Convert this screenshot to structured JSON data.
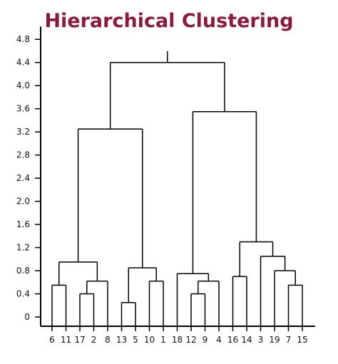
{
  "chart_data": {
    "type": "dendrogram",
    "title": "Hierarchical Clustering",
    "ylim": [
      0,
      4.8
    ],
    "y_ticks": [
      "0",
      "0.4",
      "0.8",
      "1.2",
      "1.6",
      "2.0",
      "2.4",
      "2.8",
      "3.2",
      "3.6",
      "4.0",
      "4.4",
      "4.8"
    ],
    "leaves": [
      "6",
      "11",
      "17",
      "2",
      "8",
      "13",
      "5",
      "10",
      "1",
      "18",
      "12",
      "9",
      "4",
      "16",
      "14",
      "3",
      "19",
      "7",
      "15"
    ],
    "merges": [
      {
        "left": "6",
        "right": "11",
        "height": 0.55
      },
      {
        "left": "17",
        "right": "2",
        "height": 0.4
      },
      {
        "left": "17+2",
        "right": "8",
        "height": 0.62
      },
      {
        "left": "6+11",
        "right": "17+2+8",
        "height": 0.95
      },
      {
        "left": "13",
        "right": "5",
        "height": 0.25
      },
      {
        "left": "10",
        "right": "1",
        "height": 0.62
      },
      {
        "left": "13+5",
        "right": "10+1",
        "height": 0.85
      },
      {
        "left": "6..8",
        "right": "13..1",
        "height": 3.25
      },
      {
        "left": "12",
        "right": "9",
        "height": 0.4
      },
      {
        "left": "12+9",
        "right": "4",
        "height": 0.62
      },
      {
        "left": "18",
        "right": "12+9+4",
        "height": 0.75
      },
      {
        "left": "16",
        "right": "14",
        "height": 0.7
      },
      {
        "left": "7",
        "right": "15",
        "height": 0.55
      },
      {
        "left": "19",
        "right": "7+15",
        "height": 0.8
      },
      {
        "left": "3",
        "right": "19+7+15",
        "height": 1.05
      },
      {
        "left": "16+14",
        "right": "3..15",
        "height": 1.3
      },
      {
        "left": "18..4",
        "right": "16..15",
        "height": 3.55
      },
      {
        "left": "6..1",
        "right": "18..15",
        "height": 4.4
      }
    ]
  }
}
